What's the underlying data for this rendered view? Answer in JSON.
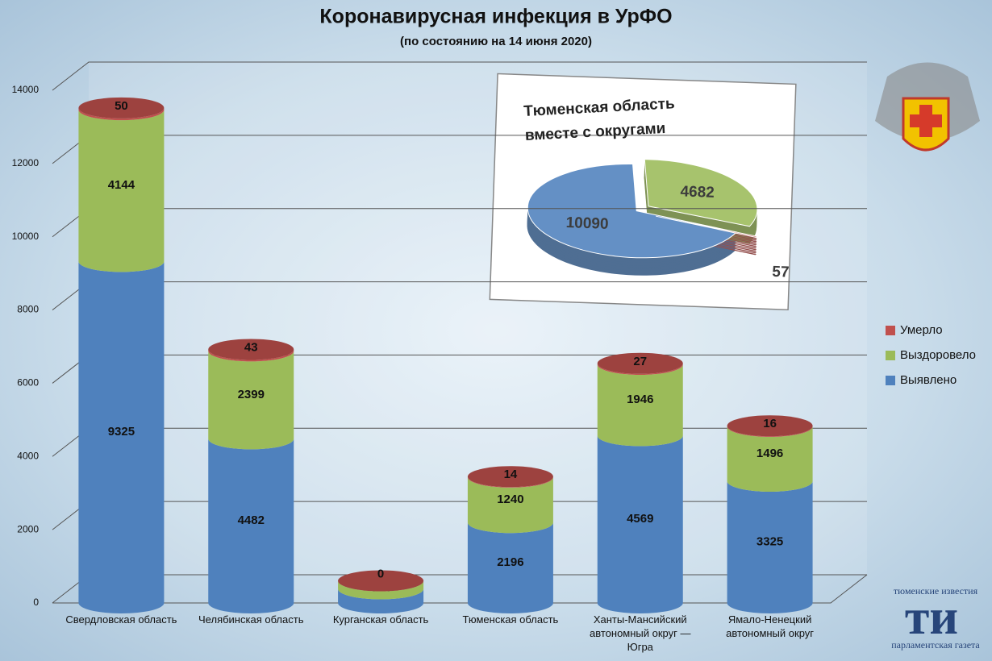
{
  "chart_data": [
    {
      "type": "bar",
      "stacked": true,
      "title": "Коронавирусная инфекция в УрФО",
      "subtitle": "(по состоянию на 14 июня 2020)",
      "categories": [
        "Свердловская область",
        "Челябинская область",
        "Курганская область",
        "Тюменская область",
        "Ханты-Мансийский автономный округ — Югра",
        "Ямало-Ненецкий автономный округ"
      ],
      "series": [
        {
          "name": "Выявлено",
          "color": "#4f81bd",
          "values": [
            9325,
            4482,
            384,
            2196,
            4569,
            3325
          ]
        },
        {
          "name": "Выздоровело",
          "color": "#9bbb59",
          "values": [
            4144,
            2399,
            220,
            1240,
            1946,
            1496
          ]
        },
        {
          "name": "Умерло",
          "color": "#c0504d",
          "values": [
            50,
            43,
            0,
            14,
            27,
            16
          ]
        }
      ],
      "ylim": [
        0,
        14000
      ],
      "yticks": [
        0,
        2000,
        4000,
        6000,
        8000,
        10000,
        12000,
        14000
      ],
      "grid": true,
      "legend": "right"
    },
    {
      "type": "pie",
      "title": "Тюменская область вместе с округами",
      "values": [
        10090,
        4682,
        57
      ],
      "colors": [
        "#4f81bd",
        "#9bbb59",
        "#c0504d"
      ]
    }
  ],
  "logo": {
    "top": "тюменские известия",
    "mark": "ти",
    "bottom": "парламентская газета"
  }
}
